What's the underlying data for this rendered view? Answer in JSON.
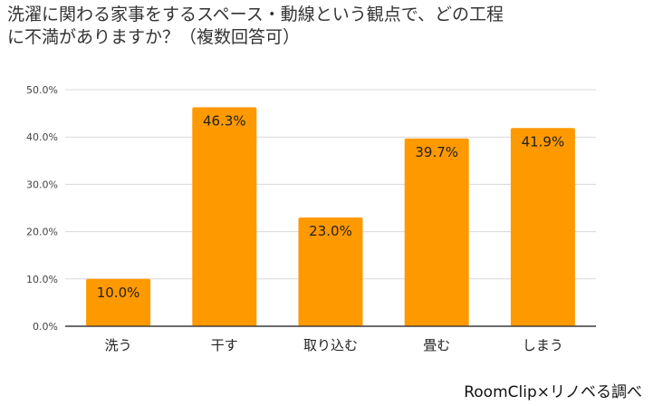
{
  "title": {
    "line1": "洗濯に関わる家事をするスペース・動線という観点で、どの工程",
    "line2": "に不満がありますか？（複数回答可）"
  },
  "source": "RoomClip×リノベる調べ",
  "colors": {
    "bar": "#FF9900",
    "grid": "#D9D9D9",
    "axis": "#333333"
  },
  "chart_data": {
    "type": "bar",
    "categories": [
      "洗う",
      "干す",
      "取り込む",
      "畳む",
      "しまう"
    ],
    "values": [
      10.0,
      46.3,
      23.0,
      39.7,
      41.9
    ],
    "value_labels": [
      "10.0%",
      "46.3%",
      "23.0%",
      "39.7%",
      "41.9%"
    ],
    "yticks": [
      0,
      10,
      20,
      30,
      40,
      50
    ],
    "ytick_labels": [
      "0.0%",
      "10.0%",
      "20.0%",
      "30.0%",
      "40.0%",
      "50.0%"
    ],
    "ylim": [
      0,
      50
    ],
    "grid": true,
    "legend": "none"
  }
}
